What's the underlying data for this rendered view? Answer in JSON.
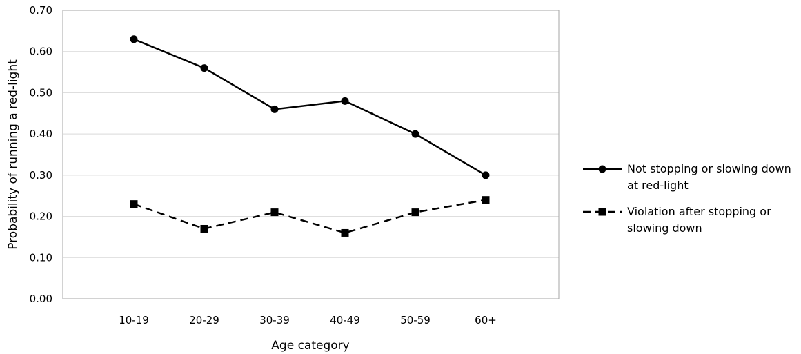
{
  "chart_data": {
    "type": "line",
    "title": "",
    "xlabel": "Age category",
    "ylabel": "Probability of running a red-light",
    "categories": [
      "10-19",
      "20-29",
      "30-39",
      "40-49",
      "50-59",
      "60+"
    ],
    "ylim": [
      0,
      0.7
    ],
    "yticks": [
      "0.00",
      "0.10",
      "0.20",
      "0.30",
      "0.40",
      "0.50",
      "0.60",
      "0.70"
    ],
    "grid": "horizontal",
    "legend_position": "right",
    "series": [
      {
        "name": "Not stopping or slowing down at red-light",
        "legend_lines": [
          "Not stopping or slowing down",
          "at red-light"
        ],
        "values": [
          0.63,
          0.56,
          0.46,
          0.48,
          0.4,
          0.3
        ],
        "line_style": "solid",
        "marker": "circle",
        "color": "#000000"
      },
      {
        "name": "Violation after stopping or slowing down",
        "legend_lines": [
          "Violation after stopping or",
          "slowing down"
        ],
        "values": [
          0.23,
          0.17,
          0.21,
          0.16,
          0.21,
          0.24
        ],
        "line_style": "dashed",
        "marker": "square",
        "color": "#000000"
      }
    ]
  }
}
